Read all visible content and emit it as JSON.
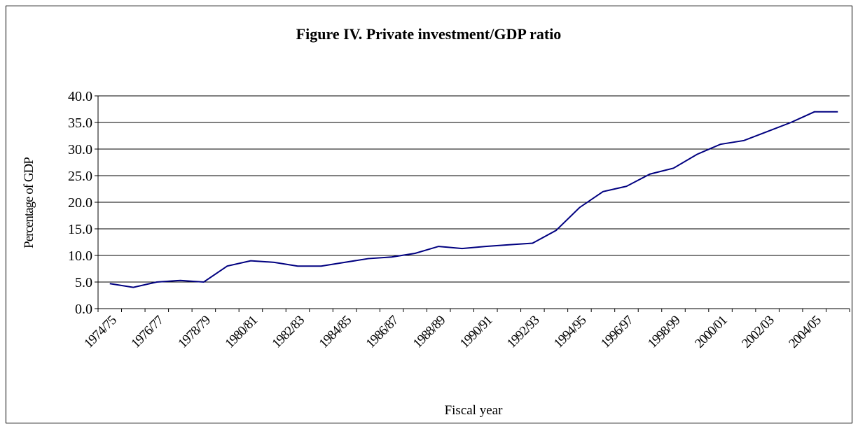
{
  "chart_data": {
    "type": "line",
    "title": "Figure IV. Private investment/GDP ratio",
    "x_label": "Fiscal year",
    "y_label": "Percentage of GDP",
    "categories": [
      "1974/75",
      null,
      "1976/77",
      null,
      "1978/79",
      null,
      "1980/81",
      null,
      "1982/83",
      null,
      "1984/85",
      null,
      "1986/87",
      null,
      "1988/89",
      null,
      "1990/91",
      null,
      "1992/93",
      null,
      "1994/95",
      null,
      "1996/97",
      null,
      "1998/99",
      null,
      "2000/01",
      null,
      "2002/03",
      null,
      "2004/05",
      null
    ],
    "series": [
      {
        "name": "Private investment/GDP ratio",
        "color": "#000080",
        "values": [
          4.7,
          4.0,
          5.0,
          5.3,
          5.0,
          8.0,
          9.0,
          8.7,
          8.0,
          8.0,
          8.7,
          9.4,
          9.7,
          10.4,
          11.7,
          11.3,
          11.7,
          12.0,
          12.3,
          14.7,
          19.0,
          22.0,
          23.0,
          25.3,
          26.4,
          29.0,
          30.9,
          31.6,
          33.3,
          35.0,
          37.0,
          37.0
        ]
      }
    ],
    "ylim": [
      0,
      40
    ],
    "yticks": [
      {
        "value": 0,
        "label": "0.0"
      },
      {
        "value": 5,
        "label": "5.0"
      },
      {
        "value": 10,
        "label": "10.0"
      },
      {
        "value": 15,
        "label": "15.0"
      },
      {
        "value": 20,
        "label": "20.0"
      },
      {
        "value": 25,
        "label": "25.0"
      },
      {
        "value": 30,
        "label": "30.0"
      },
      {
        "value": 35,
        "label": "35.0"
      },
      {
        "value": 40,
        "label": "40.0"
      }
    ],
    "grid": true
  }
}
